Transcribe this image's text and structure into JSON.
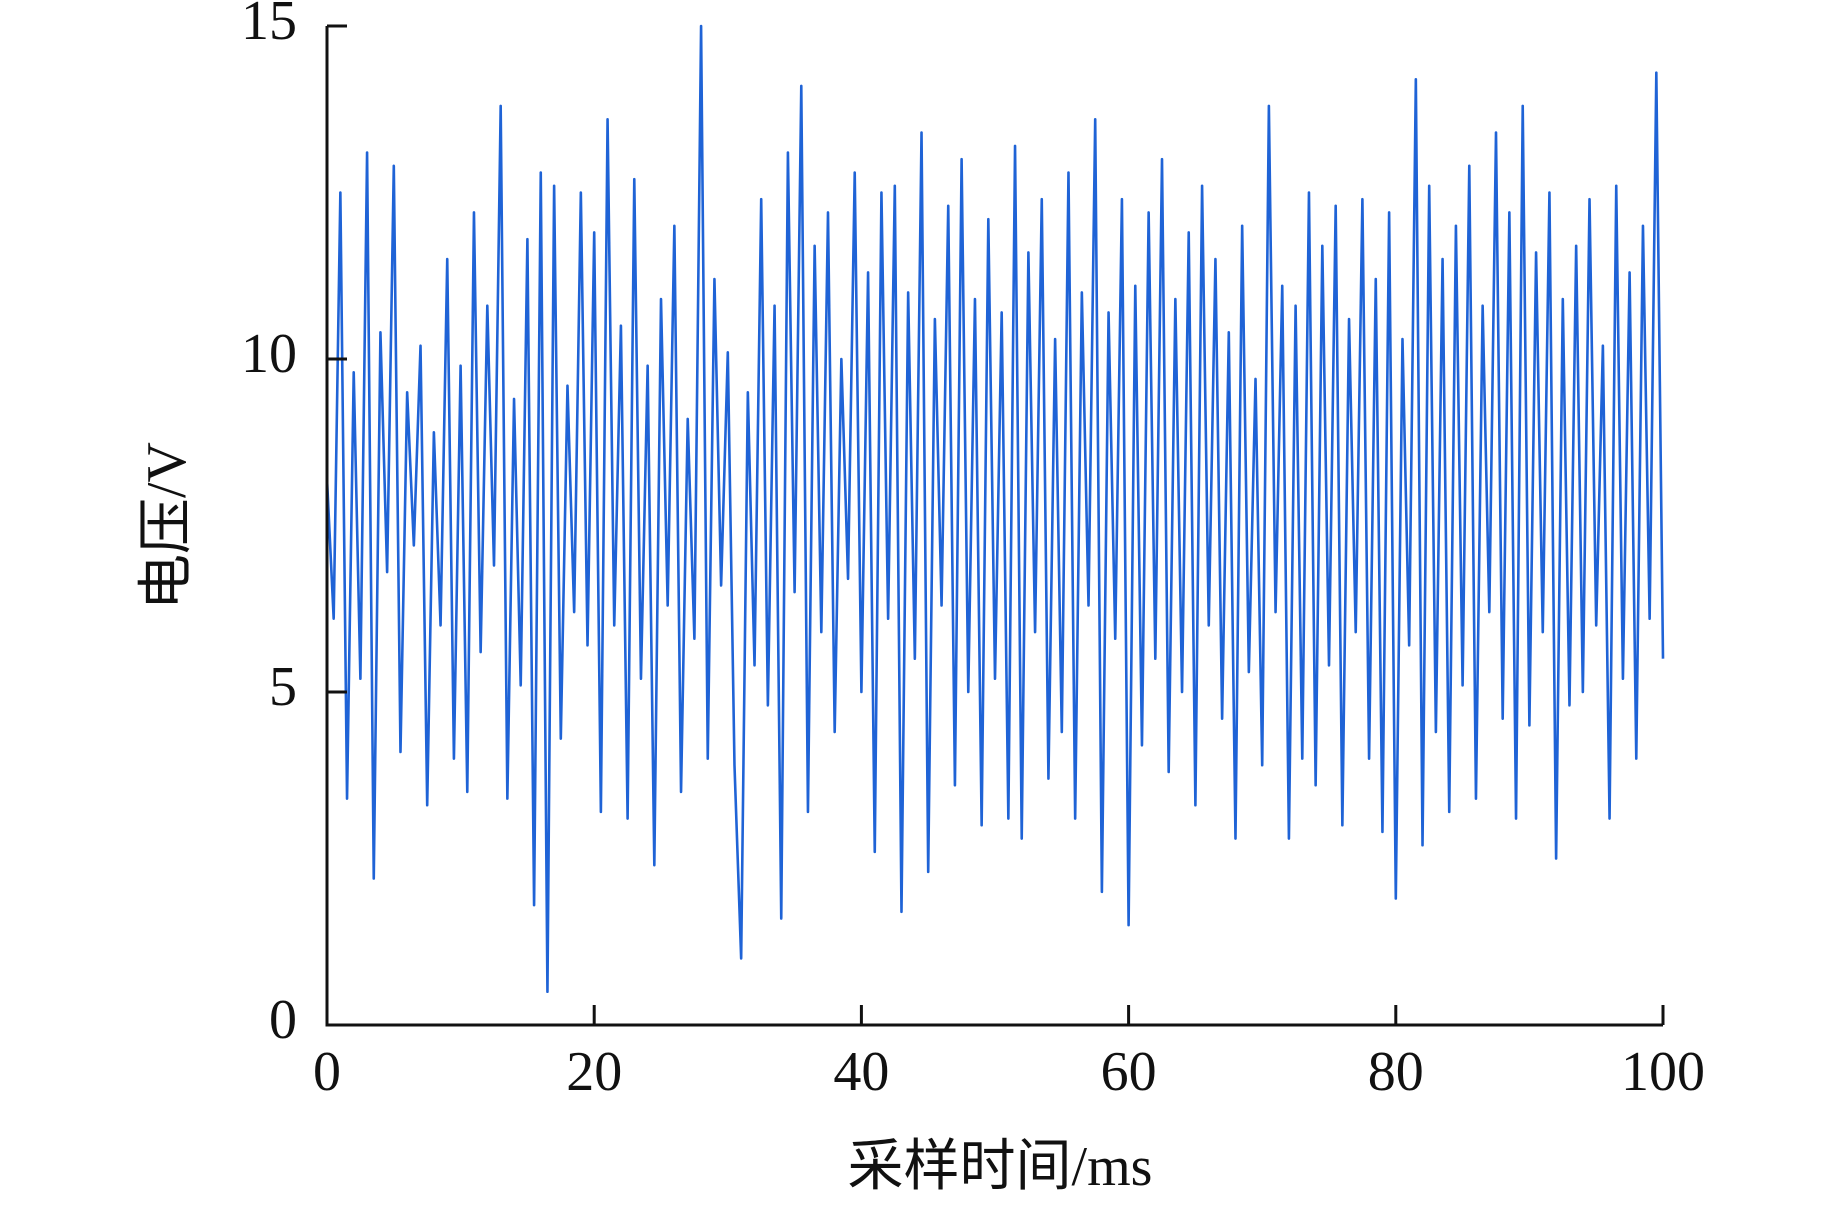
{
  "chart_data": {
    "type": "line",
    "xlabel": "采样时间/ms",
    "ylabel": "电压/V",
    "color": "#1f63d6",
    "xlim": [
      0,
      100
    ],
    "ylim": [
      0,
      15
    ],
    "xticks": [
      0,
      20,
      40,
      60,
      80,
      100
    ],
    "yticks": [
      0,
      5,
      10,
      15
    ],
    "grid": false,
    "x": [
      0,
      0.5,
      1,
      1.5,
      2,
      2.5,
      3,
      3.5,
      4,
      4.5,
      5,
      5.5,
      6,
      6.5,
      7,
      7.5,
      8,
      8.5,
      9,
      9.5,
      10,
      10.5,
      11,
      11.5,
      12,
      12.5,
      13,
      13.5,
      14,
      14.5,
      15,
      15.5,
      16,
      16.5,
      17,
      17.5,
      18,
      18.5,
      19,
      19.5,
      20,
      20.5,
      21,
      21.5,
      22,
      22.5,
      23,
      23.5,
      24,
      24.5,
      25,
      25.5,
      26,
      26.5,
      27,
      27.5,
      28,
      28.5,
      29,
      29.5,
      30,
      30.5,
      31,
      31.5,
      32,
      32.5,
      33,
      33.5,
      34,
      34.5,
      35,
      35.5,
      36,
      36.5,
      37,
      37.5,
      38,
      38.5,
      39,
      39.5,
      40,
      40.5,
      41,
      41.5,
      42,
      42.5,
      43,
      43.5,
      44,
      44.5,
      45,
      45.5,
      46,
      46.5,
      47,
      47.5,
      48,
      48.5,
      49,
      49.5,
      50,
      50.5,
      51,
      51.5,
      52,
      52.5,
      53,
      53.5,
      54,
      54.5,
      55,
      55.5,
      56,
      56.5,
      57,
      57.5,
      58,
      58.5,
      59,
      59.5,
      60,
      60.5,
      61,
      61.5,
      62,
      62.5,
      63,
      63.5,
      64,
      64.5,
      65,
      65.5,
      66,
      66.5,
      67,
      67.5,
      68,
      68.5,
      69,
      69.5,
      70,
      70.5,
      71,
      71.5,
      72,
      72.5,
      73,
      73.5,
      74,
      74.5,
      75,
      75.5,
      76,
      76.5,
      77,
      77.5,
      78,
      78.5,
      79,
      79.5,
      80,
      80.5,
      81,
      81.5,
      82,
      82.5,
      83,
      83.5,
      84,
      84.5,
      85,
      85.5,
      86,
      86.5,
      87,
      87.5,
      88,
      88.5,
      89,
      89.5,
      90,
      90.5,
      91,
      91.5,
      92,
      92.5,
      93,
      93.5,
      94,
      94.5,
      95,
      95.5,
      96,
      96.5,
      97,
      97.5,
      98,
      98.5,
      99,
      99.5,
      100
    ],
    "values": [
      8.2,
      6.1,
      12.5,
      3.4,
      9.8,
      5.2,
      13.1,
      2.2,
      10.4,
      6.8,
      12.9,
      4.1,
      9.5,
      7.2,
      10.2,
      3.3,
      8.9,
      6.0,
      11.5,
      4.0,
      9.9,
      3.5,
      12.2,
      5.6,
      10.8,
      6.9,
      13.8,
      3.4,
      9.4,
      5.1,
      11.8,
      1.8,
      12.8,
      0.5,
      12.6,
      4.3,
      9.6,
      6.2,
      12.5,
      5.7,
      11.9,
      3.2,
      13.6,
      6.0,
      10.5,
      3.1,
      12.7,
      5.2,
      9.9,
      2.4,
      10.9,
      6.3,
      12.0,
      3.5,
      9.1,
      5.8,
      15.0,
      4.0,
      11.2,
      6.6,
      10.1,
      3.9,
      1.0,
      9.5,
      5.4,
      12.4,
      4.8,
      10.8,
      1.6,
      13.1,
      6.5,
      14.1,
      3.2,
      11.7,
      5.9,
      12.2,
      4.4,
      10.0,
      6.7,
      12.8,
      5.0,
      11.3,
      2.6,
      12.5,
      6.1,
      12.6,
      1.7,
      11.0,
      5.5,
      13.4,
      2.3,
      10.6,
      6.3,
      12.3,
      3.6,
      13.0,
      5.0,
      10.9,
      3.0,
      12.1,
      5.2,
      10.7,
      3.1,
      13.2,
      2.8,
      11.6,
      5.9,
      12.4,
      3.7,
      10.3,
      4.4,
      12.8,
      3.1,
      11.0,
      6.3,
      13.6,
      2.0,
      10.7,
      5.8,
      12.4,
      1.5,
      11.1,
      4.2,
      12.2,
      5.5,
      13.0,
      3.8,
      10.9,
      5.0,
      11.9,
      3.3,
      12.6,
      6.0,
      11.5,
      4.6,
      10.4,
      2.8,
      12.0,
      5.3,
      9.7,
      3.9,
      13.8,
      6.2,
      11.1,
      2.8,
      10.8,
      4.0,
      12.5,
      3.6,
      11.7,
      5.4,
      12.3,
      3.0,
      10.6,
      5.9,
      12.4,
      4.0,
      11.2,
      2.9,
      12.2,
      1.9,
      10.3,
      5.7,
      14.2,
      2.7,
      12.6,
      4.4,
      11.5,
      3.2,
      12.0,
      5.1,
      12.9,
      3.4,
      10.8,
      6.2,
      13.4,
      4.6,
      12.2,
      3.1,
      13.8,
      4.5,
      11.6,
      5.9,
      12.5,
      2.5,
      10.9,
      4.8,
      11.7,
      5.0,
      12.4,
      6.0,
      10.2,
      3.1,
      12.6,
      5.2,
      11.3,
      4.0,
      12.0,
      6.1,
      14.3,
      5.5
    ]
  }
}
